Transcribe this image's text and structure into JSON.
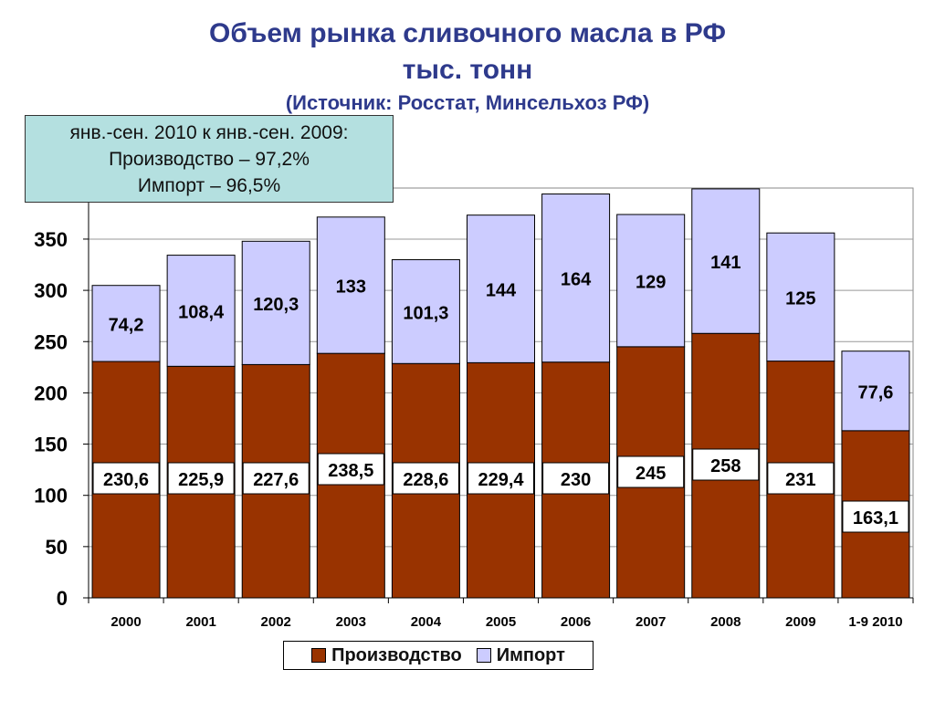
{
  "title_line1": "Объем рынка сливочного масла в РФ",
  "title_line2": "тыс. тонн",
  "title_line3": "(Источник: Росстат, Минсельхоз РФ)",
  "note": {
    "line1": "янв.-сен. 2010 к янв.-сен. 2009:",
    "line2": "Производство – 97,2%",
    "line3": "Импорт – 96,5%"
  },
  "colors": {
    "production": "#993300",
    "import": "#ccccff"
  },
  "chart_data": {
    "type": "bar",
    "stacked": true,
    "categories": [
      "2000",
      "2001",
      "2002",
      "2003",
      "2004",
      "2005",
      "2006",
      "2007",
      "2008",
      "2009",
      "1-9 2010"
    ],
    "series": [
      {
        "name": "Производство",
        "values": [
          230.6,
          225.9,
          227.6,
          238.5,
          228.6,
          229.4,
          230,
          245,
          258,
          231,
          163.1
        ],
        "labels": [
          "230,6",
          "225,9",
          "227,6",
          "238,5",
          "228,6",
          "229,4",
          "230",
          "245",
          "258",
          "231",
          "163,1"
        ]
      },
      {
        "name": "Импорт",
        "values": [
          74.2,
          108.4,
          120.3,
          133,
          101.3,
          144,
          164,
          129,
          141,
          125,
          77.6
        ],
        "labels": [
          "74,2",
          "108,4",
          "120,3",
          "133",
          "101,3",
          "144",
          "164",
          "129",
          "141",
          "125",
          "77,6"
        ]
      }
    ],
    "yticks": [
      "0",
      "50",
      "100",
      "150",
      "200",
      "250",
      "300",
      "350"
    ],
    "ylim": [
      0,
      400
    ],
    "grid": true,
    "legend": "bottom"
  }
}
